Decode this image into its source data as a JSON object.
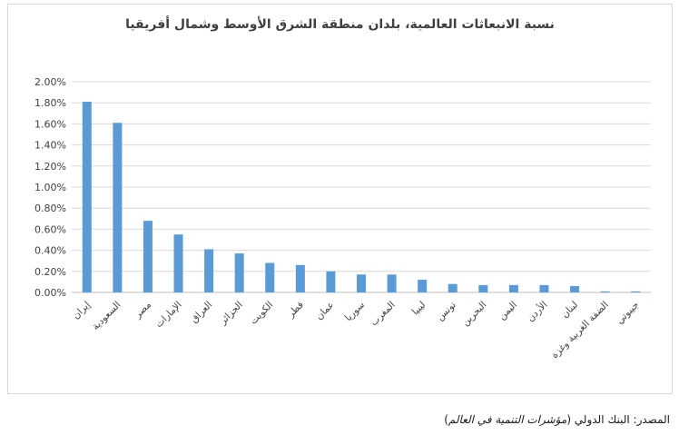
{
  "chart_data": {
    "type": "bar",
    "title": "نسبة الانبعاثات العالمية، بلدان منطقة الشرق الأوسط وشمال أفريقيا",
    "xlabel": "",
    "ylabel": "",
    "ylim": [
      0,
      0.02
    ],
    "y_ticks": [
      "0.00%",
      "0.20%",
      "0.40%",
      "0.60%",
      "0.80%",
      "1.00%",
      "1.20%",
      "1.40%",
      "1.60%",
      "1.80%",
      "2.00%"
    ],
    "grid": true,
    "legend": "none",
    "bar_color": "#5b9bd5",
    "categories": [
      "إيران",
      "السعودية",
      "مصر",
      "الإمارات",
      "العراق",
      "الجزائر",
      "الكويت",
      "قطر",
      "عمان",
      "سوريا",
      "المغرب",
      "ليبيا",
      "تونس",
      "البحرين",
      "اليمن",
      "الأردن",
      "لبنان",
      "الضفة الغربية وغزة",
      "جيبوتي"
    ],
    "values": [
      0.0181,
      0.0161,
      0.0068,
      0.0055,
      0.0041,
      0.0037,
      0.0028,
      0.0026,
      0.002,
      0.0017,
      0.0017,
      0.0012,
      0.0008,
      0.0007,
      0.0007,
      0.0007,
      0.0006,
      0.0001,
      0.0001
    ]
  },
  "source": {
    "label": "المصدر: البنك الدولي (",
    "publication": "مؤشرات التنمية في العالم",
    "close": ")"
  }
}
